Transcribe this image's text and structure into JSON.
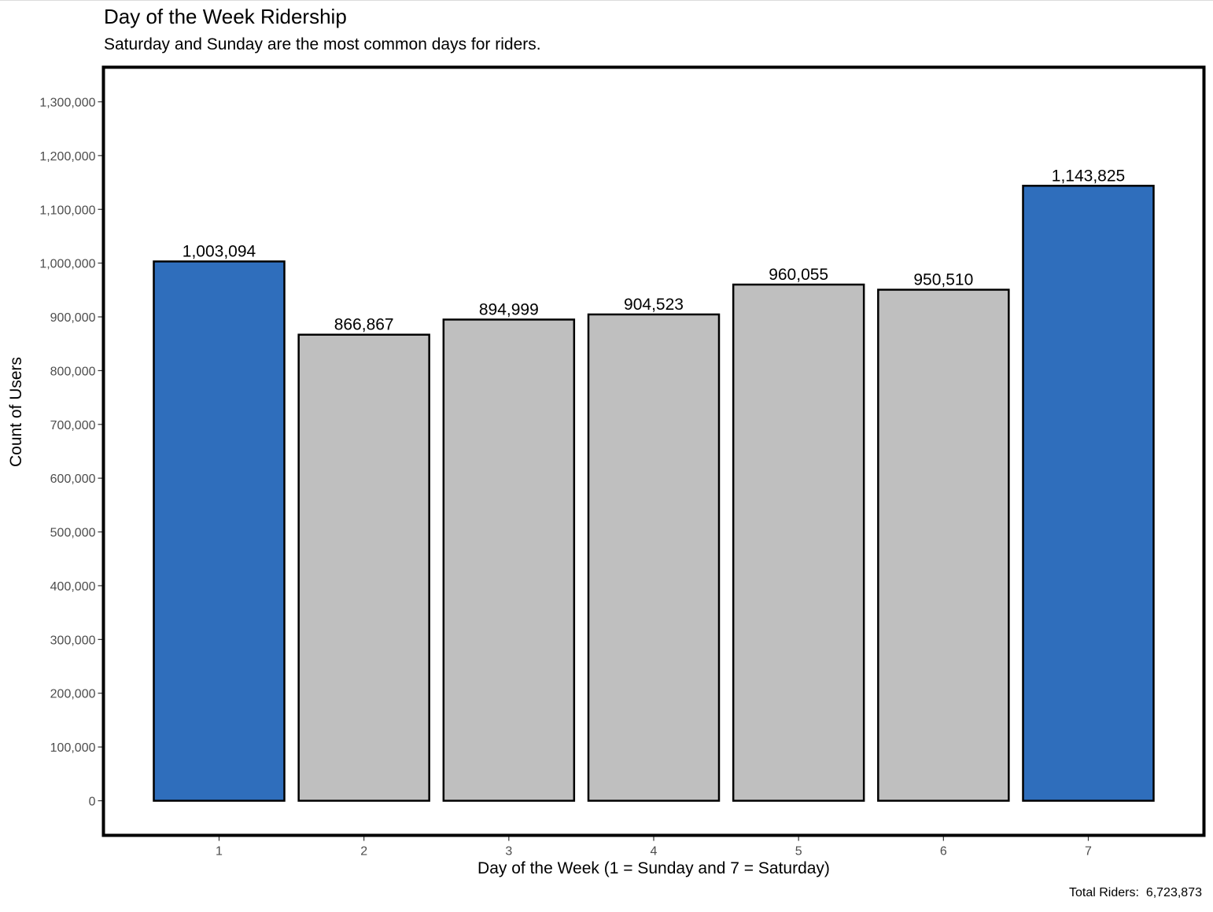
{
  "chart_data": {
    "type": "bar",
    "title": "Day of the Week Ridership",
    "subtitle": "Saturday and Sunday are the most common days for riders.",
    "xlabel": "Day of the Week (1 = Sunday and 7 = Saturday)",
    "ylabel": "Count of Users",
    "categories": [
      "1",
      "2",
      "3",
      "4",
      "5",
      "6",
      "7"
    ],
    "values": [
      1003094,
      866867,
      894999,
      904523,
      960055,
      950510,
      1143825
    ],
    "value_labels": [
      "1,003,094",
      "866,867",
      "894,999",
      "904,523",
      "960,055",
      "950,510",
      "1,143,825"
    ],
    "highlighted": [
      true,
      false,
      false,
      false,
      false,
      false,
      true
    ],
    "colors": {
      "highlight": "#2f6ebc",
      "normal": "#bfbfbf",
      "outline": "#000000"
    },
    "ylim": [
      -64000,
      1365000
    ],
    "yticks": [
      0,
      100000,
      200000,
      300000,
      400000,
      500000,
      600000,
      700000,
      800000,
      900000,
      1000000,
      1100000,
      1200000,
      1300000
    ],
    "ytick_labels": [
      "0",
      "100,000",
      "200,000",
      "300,000",
      "400,000",
      "500,000",
      "600,000",
      "700,000",
      "800,000",
      "900,000",
      "1,000,000",
      "1,100,000",
      "1,200,000",
      "1,300,000"
    ],
    "grid": false,
    "legend": "none",
    "caption": "Total Riders:  6,723,873"
  }
}
